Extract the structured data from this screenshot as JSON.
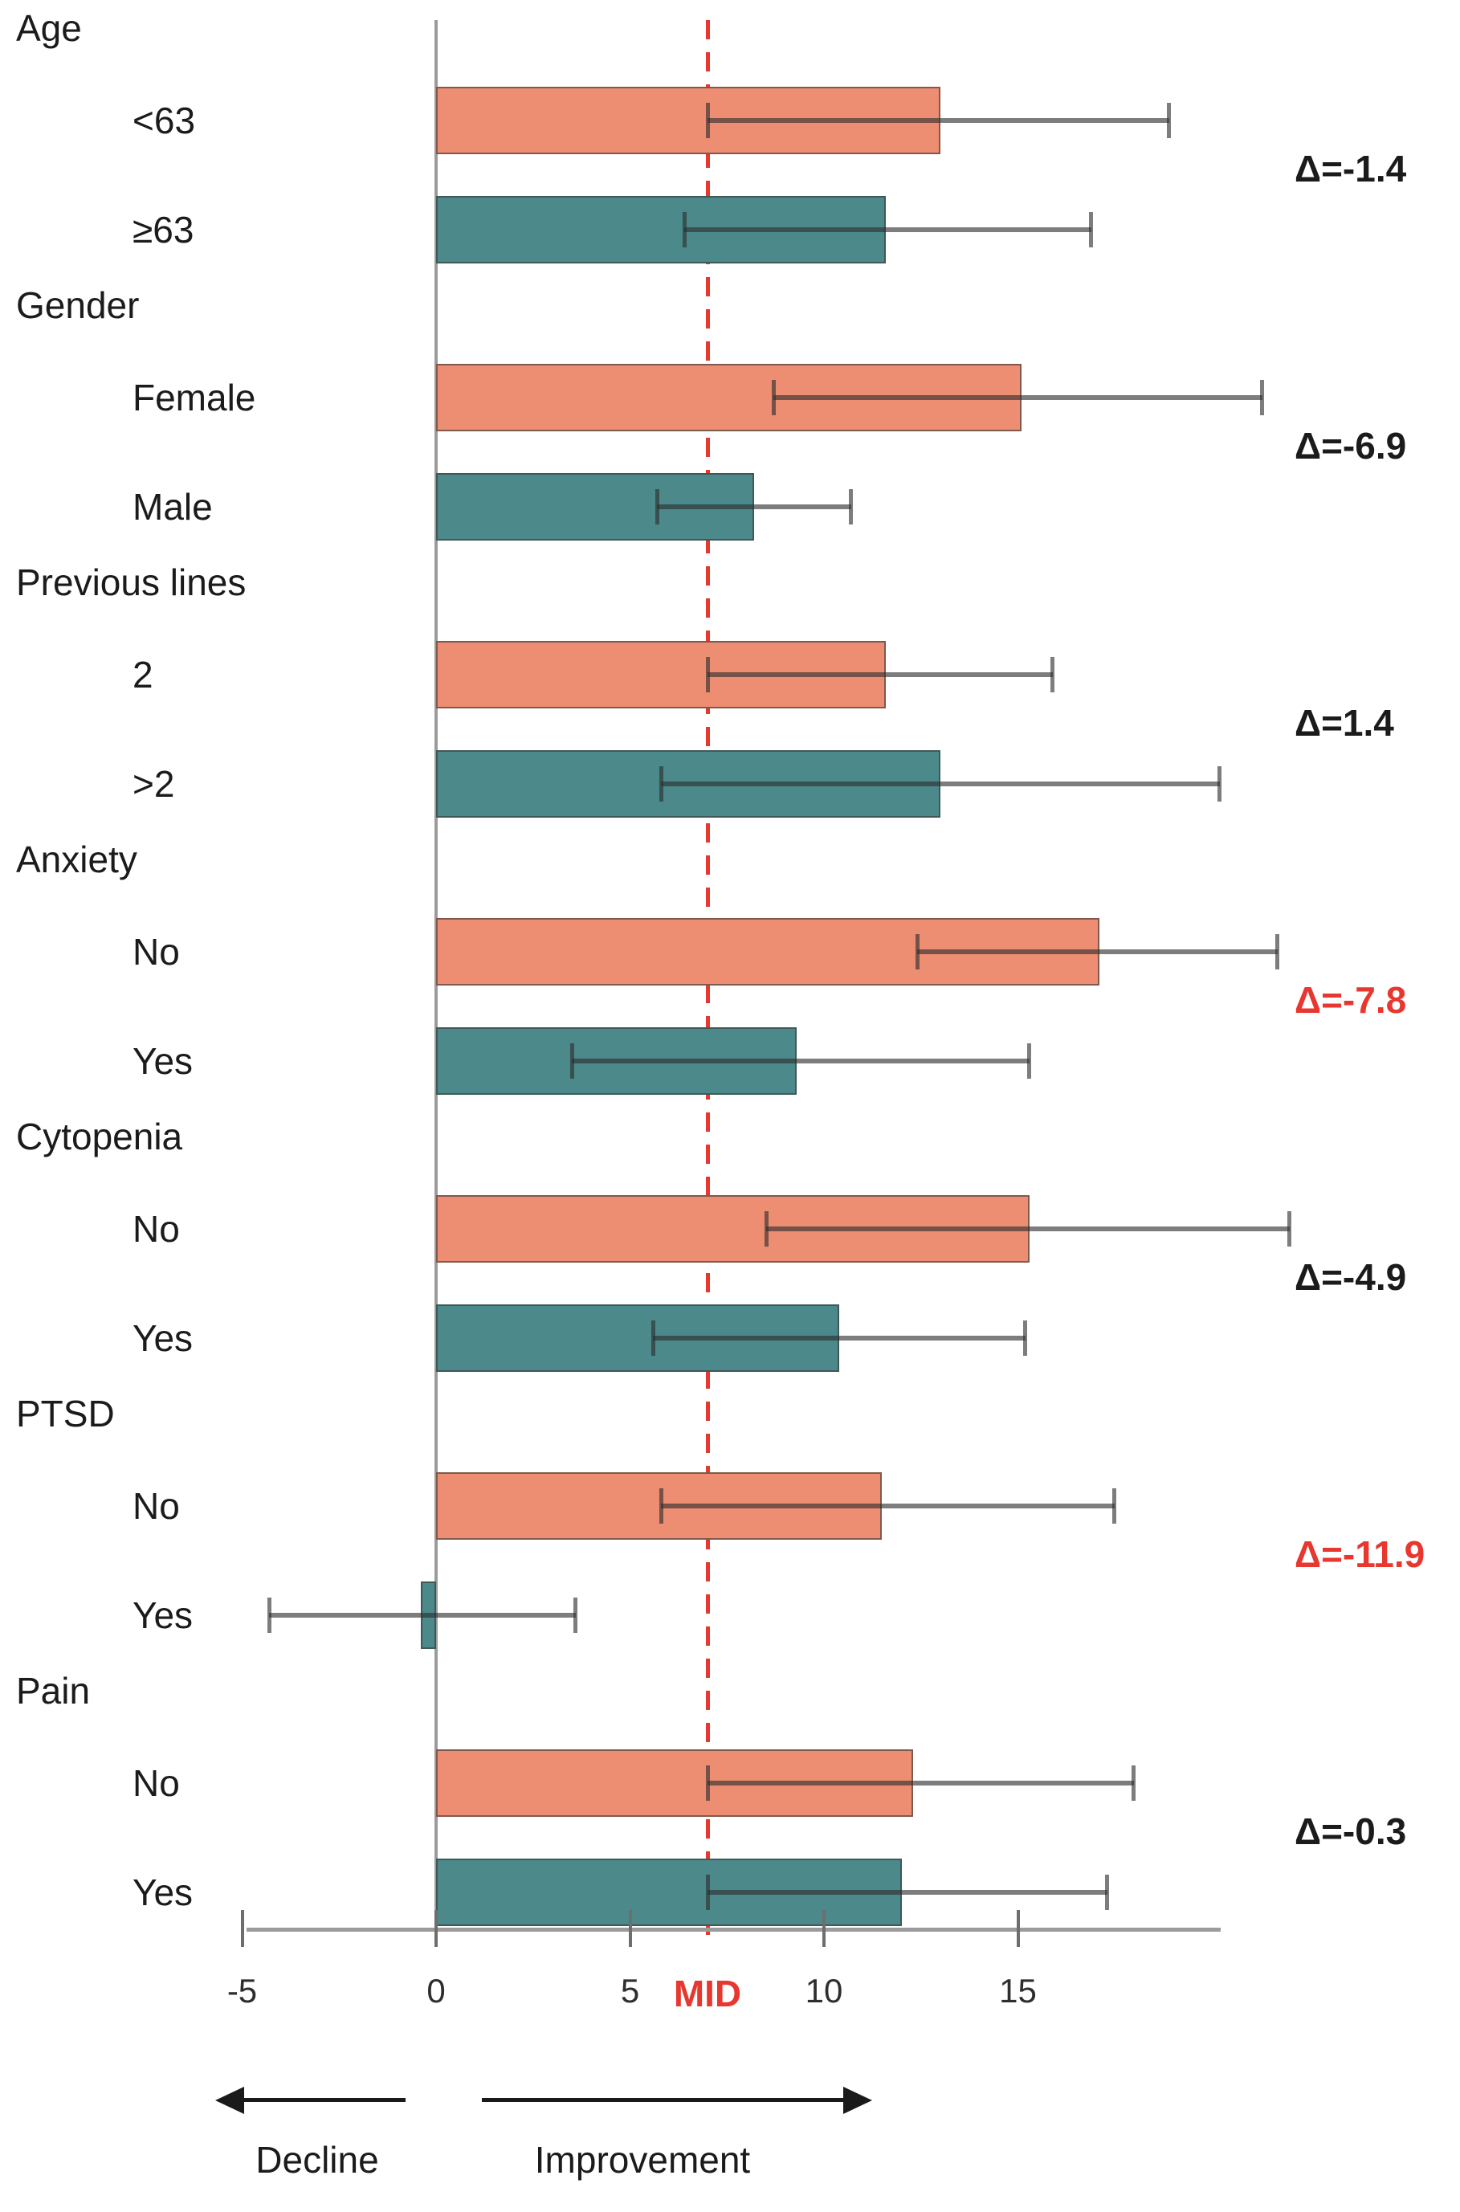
{
  "chart_data": {
    "type": "bar",
    "orientation": "horizontal",
    "title": "",
    "xlabel": "",
    "axis": {
      "min": -5,
      "max": 20.2,
      "ticks": [
        -5,
        0,
        5,
        10,
        15
      ],
      "mid_value": 7,
      "mid_label": "MID"
    },
    "colors": {
      "series_first": "#ED8D72",
      "series_second": "#4B898A",
      "mid_line": "#E8372F",
      "delta_default": "#1b1b1b",
      "delta_highlight": "#E8372F",
      "axis": "#9b9b9b"
    },
    "groups": [
      {
        "label": "Age",
        "bars": [
          {
            "label": "<63",
            "value": 13.0,
            "ci_low": 7.0,
            "ci_high": 18.9
          },
          {
            "label": "≥63",
            "value": 11.6,
            "ci_low": 6.4,
            "ci_high": 16.9
          }
        ],
        "delta_label": "Δ=-1.4",
        "delta_red": false
      },
      {
        "label": "Gender",
        "bars": [
          {
            "label": "Female",
            "value": 15.1,
            "ci_low": 8.7,
            "ci_high": 21.3
          },
          {
            "label": "Male",
            "value": 8.2,
            "ci_low": 5.7,
            "ci_high": 10.7
          }
        ],
        "delta_label": "Δ=-6.9",
        "delta_red": false
      },
      {
        "label": "Previous lines",
        "bars": [
          {
            "label": "2",
            "value": 11.6,
            "ci_low": 7.0,
            "ci_high": 15.9
          },
          {
            "label": ">2",
            "value": 13.0,
            "ci_low": 5.8,
            "ci_high": 20.2
          }
        ],
        "delta_label": "Δ=1.4",
        "delta_red": false
      },
      {
        "label": "Anxiety",
        "bars": [
          {
            "label": "No",
            "value": 17.1,
            "ci_low": 12.4,
            "ci_high": 21.7
          },
          {
            "label": "Yes",
            "value": 9.3,
            "ci_low": 3.5,
            "ci_high": 15.3
          }
        ],
        "delta_label": "Δ=-7.8",
        "delta_red": true
      },
      {
        "label": "Cytopenia",
        "bars": [
          {
            "label": "No",
            "value": 15.3,
            "ci_low": 8.5,
            "ci_high": 22.0
          },
          {
            "label": "Yes",
            "value": 10.4,
            "ci_low": 5.6,
            "ci_high": 15.2
          }
        ],
        "delta_label": "Δ=-4.9",
        "delta_red": false
      },
      {
        "label": "PTSD",
        "bars": [
          {
            "label": "No",
            "value": 11.5,
            "ci_low": 5.8,
            "ci_high": 17.5
          },
          {
            "label": "Yes",
            "value": -0.4,
            "ci_low": -4.3,
            "ci_high": 3.6
          }
        ],
        "delta_label": "Δ=-11.9",
        "delta_red": true
      },
      {
        "label": "Pain",
        "bars": [
          {
            "label": "No",
            "value": 12.3,
            "ci_low": 7.0,
            "ci_high": 18.0
          },
          {
            "label": "Yes",
            "value": 12.0,
            "ci_low": 7.0,
            "ci_high": 17.3
          }
        ],
        "delta_label": "Δ=-0.3",
        "delta_red": false
      }
    ],
    "annotations": {
      "decline": "Decline",
      "improvement": "Improvement"
    }
  }
}
